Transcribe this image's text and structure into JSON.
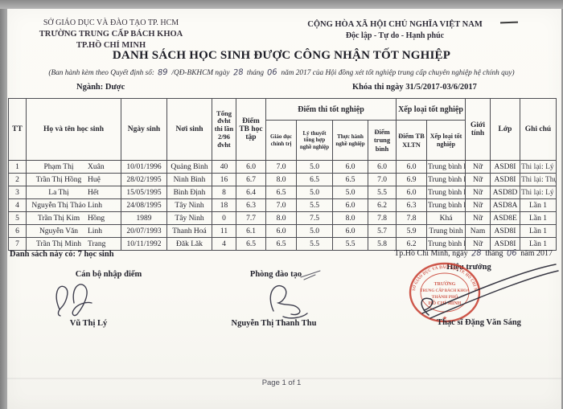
{
  "org": {
    "line1": "SỞ GIÁO DỤC VÀ ĐÀO TẠO TP. HCM",
    "line2": "TRƯỜNG TRUNG CẤP BÁCH KHOA",
    "line3": "TP.HỒ CHÍ MINH"
  },
  "national": {
    "line1": "CỘNG HÒA XÃ HỘI CHỦ NGHĨA VIỆT NAM",
    "line2": "Độc lập - Tự do - Hạnh phúc"
  },
  "title": "DANH SÁCH HỌC SINH ĐƯỢC CÔNG NHẬN TỐT NGHIỆP",
  "subtitle": {
    "p1": "(Ban hành kèm theo Quyết định số:",
    "hw1": "89",
    "p2": "/QĐ-BKHCM ngày",
    "hw2": "28",
    "p3": "tháng",
    "hw3": "06",
    "p4": "năm 2017 của Hội đồng xét tốt nghiệp trung cấp chuyên nghiệp hệ chính quy)"
  },
  "meta": {
    "major": "Ngành: Dược",
    "exam_session": "Khóa thi ngày 31/5/2017-03/6/2017"
  },
  "table": {
    "headers": {
      "tt": "TT",
      "name": "Họ và tên học sinh",
      "dob": "Ngày sinh",
      "pob": "Nơi sinh",
      "dvht": "Tổng đvht thi lần 2/96 đvht",
      "tb_study": "Điểm TB học tập",
      "exam_group": "Điểm thi tốt nghiệp",
      "exam_sub": [
        "Giáo dục chính trị",
        "Lý thuyết tổng hợp nghề nghiệp",
        "Thực hành nghề nghiệp",
        "Điểm trung bình"
      ],
      "rank_group": "Xếp loại tốt nghiệp",
      "rank_sub": [
        "Điểm TB XLTN",
        "Xếp loại tốt nghiệp"
      ],
      "gender": "Giới tính",
      "class": "Lớp",
      "note": "Ghi chú"
    },
    "rows": [
      {
        "tt": "1",
        "fam": "Phạm Thị",
        "giv": "Xuân",
        "dob": "10/01/1996",
        "pob": "Quảng Bình",
        "dvht": "40",
        "tb": "6.0",
        "gdct": "7.0",
        "lt": "5.0",
        "th": "6.0",
        "dtb": "6.0",
        "xltn": "6.0",
        "rank": "Trung bình khá",
        "gender": "Nữ",
        "cls": "ASD8I",
        "note": "Thi lại: Lý thuyết"
      },
      {
        "tt": "2",
        "fam": "Trần Thị Hồng",
        "giv": "Huệ",
        "dob": "28/02/1995",
        "pob": "Ninh Bình",
        "dvht": "16",
        "tb": "6.7",
        "gdct": "8.0",
        "lt": "6.5",
        "th": "6.5",
        "dtb": "7.0",
        "xltn": "6.9",
        "rank": "Trung bình khá",
        "gender": "Nữ",
        "cls": "ASD8I",
        "note": "Thi lại: Thực hành"
      },
      {
        "tt": "3",
        "fam": "La Thị",
        "giv": "Hết",
        "dob": "15/05/1995",
        "pob": "Bình Định",
        "dvht": "8",
        "tb": "6.4",
        "gdct": "6.5",
        "lt": "5.0",
        "th": "5.0",
        "dtb": "5.5",
        "xltn": "6.0",
        "rank": "Trung bình khá",
        "gender": "Nữ",
        "cls": "ASD8D",
        "note": "Thi lại: Lý thuyết"
      },
      {
        "tt": "4",
        "fam": "Nguyễn Thị Thảo",
        "giv": "Linh",
        "dob": "24/08/1995",
        "pob": "Tây Ninh",
        "dvht": "18",
        "tb": "6.3",
        "gdct": "7.0",
        "lt": "5.5",
        "th": "6.0",
        "dtb": "6.2",
        "xltn": "6.3",
        "rank": "Trung bình khá",
        "gender": "Nữ",
        "cls": "ASD8A",
        "note": "Lần 1"
      },
      {
        "tt": "5",
        "fam": "Trần Thị Kim",
        "giv": "Hồng",
        "dob": "1989",
        "pob": "Tây Ninh",
        "dvht": "0",
        "tb": "7.7",
        "gdct": "8.0",
        "lt": "7.5",
        "th": "8.0",
        "dtb": "7.8",
        "xltn": "7.8",
        "rank": "Khá",
        "gender": "Nữ",
        "cls": "ASD8E",
        "note": "Lần 1"
      },
      {
        "tt": "6",
        "fam": "Nguyễn Văn",
        "giv": "Linh",
        "dob": "20/07/1993",
        "pob": "Thanh Hoá",
        "dvht": "11",
        "tb": "6.1",
        "gdct": "6.0",
        "lt": "5.0",
        "th": "6.0",
        "dtb": "5.7",
        "xltn": "5.9",
        "rank": "Trung bình",
        "gender": "Nam",
        "cls": "ASD8I",
        "note": "Lần 1"
      },
      {
        "tt": "7",
        "fam": "Trần Thị Minh",
        "giv": "Trang",
        "dob": "10/11/1992",
        "pob": "Đăk Lăk",
        "dvht": "4",
        "tb": "6.5",
        "gdct": "6.5",
        "lt": "5.5",
        "th": "5.5",
        "dtb": "5.8",
        "xltn": "6.2",
        "rank": "Trung bình khá",
        "gender": "Nữ",
        "cls": "ASD8I",
        "note": "Lần 1"
      }
    ]
  },
  "summary": "Danh sách này có: 7 học sinh",
  "footer": {
    "place_date": {
      "p1": "Tp.Hồ Chí Minh, ngày",
      "hw1": "28",
      "p2": "tháng",
      "hw2": "06",
      "p3": "năm 2017"
    },
    "signer1": {
      "title": "Cán bộ nhập điểm",
      "name": "Vũ Thị Lý"
    },
    "signer2": {
      "title": "Phòng đào tạo",
      "name": "Nguyễn Thị Thanh Thu"
    },
    "signer3": {
      "title": "Hiệu trưởng",
      "name": "Thạc sĩ Đặng Văn Sáng"
    }
  },
  "stamp": {
    "rim": "SỞ GIÁO DỤC VÀ ĐÀO TẠO TP. HỒ CHÍ MINH",
    "center1": "TRƯỜNG",
    "center2": "TRUNG CẤP BÁCH KHOA",
    "center3": "THÀNH PHỐ",
    "center4": "HỒ CHÍ MINH",
    "star": "★",
    "color": "#c73b2d"
  },
  "page_footer": "Page 1 of 1",
  "colors": {
    "paper": "#fbfaf6",
    "stamp_red": "#c73b2d",
    "ink": "#22222c"
  }
}
